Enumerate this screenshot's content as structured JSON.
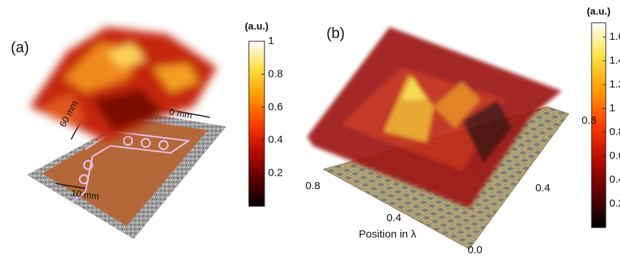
{
  "chart_data": [
    {
      "type": "surface",
      "panel_label": "(a)",
      "colorbar_label": "(a.u.)",
      "colormap": "hot",
      "clim": [
        0,
        1
      ],
      "cticks": [
        0.2,
        0.4,
        0.6,
        0.8,
        1
      ],
      "annotations": [
        "60 mm",
        "10 mm",
        "0 mm"
      ]
    },
    {
      "type": "surface",
      "panel_label": "(b)",
      "colorbar_label": "(a.u.)",
      "colormap": "hot",
      "clim": [
        0,
        1.72
      ],
      "cticks": [
        0.2,
        0.4,
        0.6,
        0.8,
        1,
        1.2,
        1.4,
        1.6
      ],
      "xlabel": "Position in λ",
      "xlim": [
        0,
        0.8
      ],
      "xticks": [
        {
          "value": 0,
          "label": "0.0"
        },
        0.4,
        0.8
      ],
      "ylim": [
        0,
        0.8
      ],
      "yticks": [
        0.4,
        0.8
      ]
    }
  ]
}
